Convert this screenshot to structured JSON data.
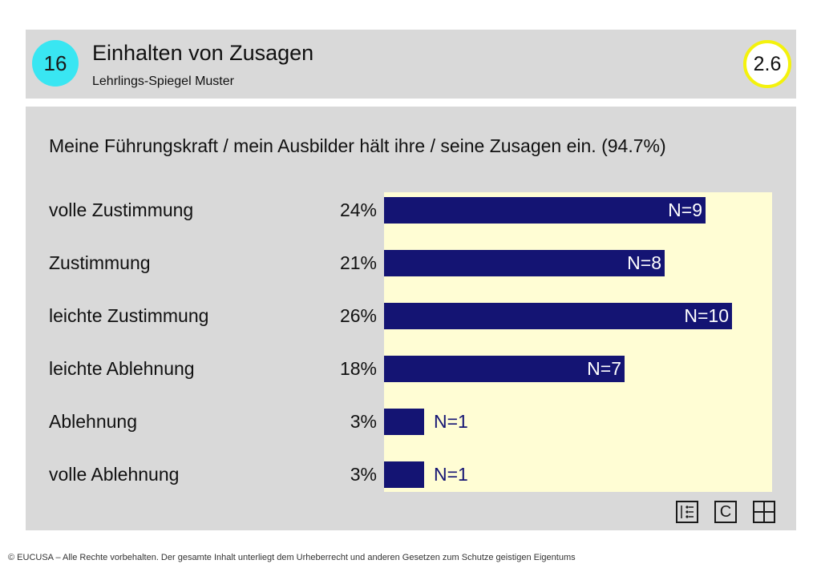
{
  "header": {
    "number": "16",
    "title": "Einhalten von Zusagen",
    "subtitle": "Lehrlings-Spiegel Muster",
    "version": "2.6"
  },
  "chart_data": {
    "type": "bar",
    "orientation": "horizontal",
    "title": "Meine Führungskraft / mein Ausbilder hält ihre / seine Zusagen ein. (94.7%)",
    "categories": [
      "volle Zustimmung",
      "Zustimmung",
      "leichte Zustimmung",
      "leichte Ablehnung",
      "Ablehnung",
      "volle Ablehnung"
    ],
    "percent_labels": [
      "24%",
      "21%",
      "26%",
      "18%",
      "3%",
      "3%"
    ],
    "values": [
      24,
      21,
      26,
      18,
      3,
      3
    ],
    "counts": [
      9,
      8,
      10,
      7,
      1,
      1
    ],
    "count_labels": [
      "N=9",
      "N=8",
      "N=10",
      "N=7",
      "N=1",
      "N=1"
    ],
    "xlim": [
      0,
      29
    ],
    "colors": {
      "bar": "#141473",
      "plot_background": "#fffdd4",
      "panel": "#d9d9d9"
    }
  },
  "icons": [
    "list-chart-icon",
    "c-icon",
    "grid-icon"
  ],
  "footer": "© EUCUSA – Alle Rechte vorbehalten. Der gesamte Inhalt unterliegt dem Urheberrecht und anderen Gesetzen zum Schutze geistigen Eigentums"
}
